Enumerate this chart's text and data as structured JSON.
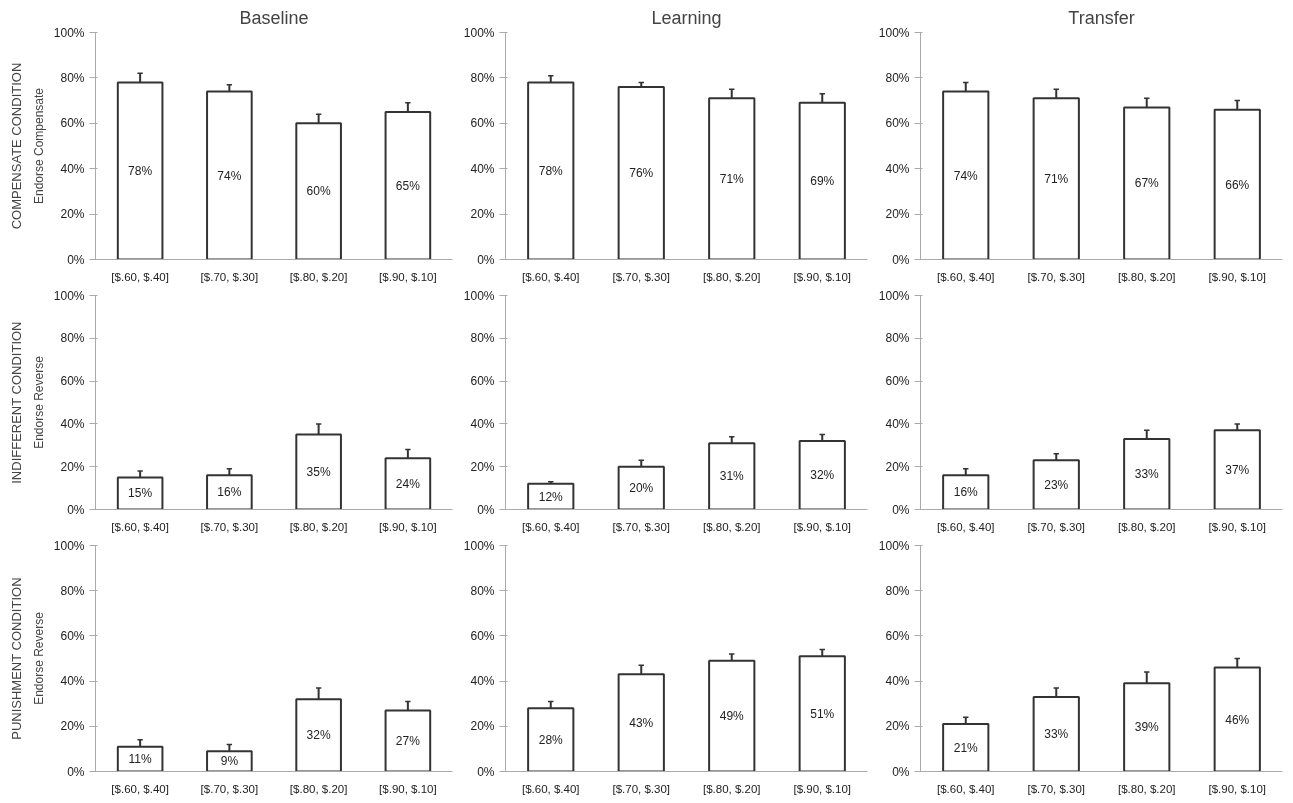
{
  "chart_data": [
    {
      "type": "bar",
      "title": "Baseline",
      "ylabel": "Endorse Compensate",
      "annotations": [
        "COMPENSATE CONDITION"
      ],
      "categories": [
        "[$.60, $.40]",
        "[$.70, $.30]",
        "[$.80, $.20]",
        "[$.90, $.10]"
      ],
      "values": [
        78,
        74,
        60,
        65
      ],
      "errors": [
        [
          78,
          82
        ],
        [
          74,
          77
        ],
        [
          60,
          64
        ],
        [
          65,
          69
        ]
      ],
      "value_labels": [
        "78%",
        "74%",
        "60%",
        "65%"
      ],
      "color": "#ffffff",
      "ylim": [
        0,
        100
      ],
      "yticks": [
        {
          "value": 0,
          "label": "0%"
        },
        {
          "value": 20,
          "label": "20%"
        },
        {
          "value": 40,
          "label": "40%"
        },
        {
          "value": 60,
          "label": "60%"
        },
        {
          "value": 80,
          "label": "80%"
        },
        {
          "value": 100,
          "label": "100%"
        }
      ],
      "grid": false
    },
    {
      "type": "bar",
      "title": "Learning",
      "categories": [
        "[$.60, $.40]",
        "[$.70, $.30]",
        "[$.80, $.20]",
        "[$.90, $.10]"
      ],
      "values": [
        78,
        76,
        71,
        69
      ],
      "errors": [
        [
          78,
          81
        ],
        [
          76,
          78
        ],
        [
          71,
          75
        ],
        [
          69,
          73
        ]
      ],
      "value_labels": [
        "78%",
        "76%",
        "71%",
        "69%"
      ],
      "color": "#ffffff",
      "ylim": [
        0,
        100
      ],
      "yticks": [
        {
          "value": 0,
          "label": "0%"
        },
        {
          "value": 20,
          "label": "20%"
        },
        {
          "value": 40,
          "label": "40%"
        },
        {
          "value": 60,
          "label": "60%"
        },
        {
          "value": 80,
          "label": "80%"
        },
        {
          "value": 100,
          "label": "100%"
        }
      ],
      "grid": false
    },
    {
      "type": "bar",
      "title": "Transfer",
      "categories": [
        "[$.60, $.40]",
        "[$.70, $.30]",
        "[$.80, $.20]",
        "[$.90, $.10]"
      ],
      "values": [
        74,
        71,
        67,
        66
      ],
      "errors": [
        [
          74,
          78
        ],
        [
          71,
          75
        ],
        [
          67,
          71
        ],
        [
          66,
          70
        ]
      ],
      "value_labels": [
        "74%",
        "71%",
        "67%",
        "66%"
      ],
      "color": "#ffffff",
      "ylim": [
        0,
        100
      ],
      "yticks": [
        {
          "value": 0,
          "label": "0%"
        },
        {
          "value": 20,
          "label": "20%"
        },
        {
          "value": 40,
          "label": "40%"
        },
        {
          "value": 60,
          "label": "60%"
        },
        {
          "value": 80,
          "label": "80%"
        },
        {
          "value": 100,
          "label": "100%"
        }
      ],
      "grid": false
    },
    {
      "type": "bar",
      "ylabel": "Endorse Reverse",
      "annotations": [
        "INDIFFERENT CONDITION"
      ],
      "categories": [
        "[$.60, $.40]",
        "[$.70, $.30]",
        "[$.80, $.20]",
        "[$.90, $.10]"
      ],
      "values": [
        15,
        16,
        35,
        24
      ],
      "errors": [
        [
          15,
          18
        ],
        [
          16,
          19
        ],
        [
          35,
          40
        ],
        [
          24,
          28
        ]
      ],
      "value_labels": [
        "15%",
        "16%",
        "35%",
        "24%"
      ],
      "color": "#ffffff",
      "ylim": [
        0,
        100
      ],
      "yticks": [
        {
          "value": 0,
          "label": "0%"
        },
        {
          "value": 20,
          "label": "20%"
        },
        {
          "value": 40,
          "label": "40%"
        },
        {
          "value": 60,
          "label": "60%"
        },
        {
          "value": 80,
          "label": "80%"
        },
        {
          "value": 100,
          "label": "100%"
        }
      ],
      "grid": false
    },
    {
      "type": "bar",
      "categories": [
        "[$.60, $.40]",
        "[$.70, $.30]",
        "[$.80, $.20]",
        "[$.90, $.10]"
      ],
      "values": [
        12,
        20,
        31,
        32
      ],
      "errors": [
        [
          12,
          13
        ],
        [
          20,
          23
        ],
        [
          31,
          34
        ],
        [
          32,
          35
        ]
      ],
      "value_labels": [
        "12%",
        "20%",
        "31%",
        "32%"
      ],
      "color": "#ffffff",
      "ylim": [
        0,
        100
      ],
      "yticks": [
        {
          "value": 0,
          "label": "0%"
        },
        {
          "value": 20,
          "label": "20%"
        },
        {
          "value": 40,
          "label": "40%"
        },
        {
          "value": 60,
          "label": "60%"
        },
        {
          "value": 80,
          "label": "80%"
        },
        {
          "value": 100,
          "label": "100%"
        }
      ],
      "grid": false
    },
    {
      "type": "bar",
      "categories": [
        "[$.60, $.40]",
        "[$.70, $.30]",
        "[$.80, $.20]",
        "[$.90, $.10]"
      ],
      "values": [
        16,
        23,
        33,
        37
      ],
      "errors": [
        [
          16,
          19
        ],
        [
          23,
          26
        ],
        [
          33,
          37
        ],
        [
          37,
          40
        ]
      ],
      "value_labels": [
        "16%",
        "23%",
        "33%",
        "37%"
      ],
      "color": "#ffffff",
      "ylim": [
        0,
        100
      ],
      "yticks": [
        {
          "value": 0,
          "label": "0%"
        },
        {
          "value": 20,
          "label": "20%"
        },
        {
          "value": 40,
          "label": "40%"
        },
        {
          "value": 60,
          "label": "60%"
        },
        {
          "value": 80,
          "label": "80%"
        },
        {
          "value": 100,
          "label": "100%"
        }
      ],
      "grid": false
    },
    {
      "type": "bar",
      "ylabel": "Endorse Reverse",
      "annotations": [
        "PUNISHMENT CONDITION"
      ],
      "categories": [
        "[$.60, $.40]",
        "[$.70, $.30]",
        "[$.80, $.20]",
        "[$.90, $.10]"
      ],
      "values": [
        11,
        9,
        32,
        27
      ],
      "errors": [
        [
          11,
          14
        ],
        [
          9,
          12
        ],
        [
          32,
          37
        ],
        [
          27,
          31
        ]
      ],
      "value_labels": [
        "11%",
        "9%",
        "32%",
        "27%"
      ],
      "color": "#ffffff",
      "ylim": [
        0,
        100
      ],
      "yticks": [
        {
          "value": 0,
          "label": "0%"
        },
        {
          "value": 20,
          "label": "20%"
        },
        {
          "value": 40,
          "label": "40%"
        },
        {
          "value": 60,
          "label": "60%"
        },
        {
          "value": 80,
          "label": "80%"
        },
        {
          "value": 100,
          "label": "100%"
        }
      ],
      "grid": false
    },
    {
      "type": "bar",
      "categories": [
        "[$.60, $.40]",
        "[$.70, $.30]",
        "[$.80, $.20]",
        "[$.90, $.10]"
      ],
      "values": [
        28,
        43,
        49,
        51
      ],
      "errors": [
        [
          28,
          31
        ],
        [
          43,
          47
        ],
        [
          49,
          52
        ],
        [
          51,
          54
        ]
      ],
      "value_labels": [
        "28%",
        "43%",
        "49%",
        "51%"
      ],
      "color": "#ffffff",
      "ylim": [
        0,
        100
      ],
      "yticks": [
        {
          "value": 0,
          "label": "0%"
        },
        {
          "value": 20,
          "label": "20%"
        },
        {
          "value": 40,
          "label": "40%"
        },
        {
          "value": 60,
          "label": "60%"
        },
        {
          "value": 80,
          "label": "80%"
        },
        {
          "value": 100,
          "label": "100%"
        }
      ],
      "grid": false
    },
    {
      "type": "bar",
      "categories": [
        "[$.60, $.40]",
        "[$.70, $.30]",
        "[$.80, $.20]",
        "[$.90, $.10]"
      ],
      "values": [
        21,
        33,
        39,
        46
      ],
      "errors": [
        [
          21,
          24
        ],
        [
          33,
          37
        ],
        [
          39,
          44
        ],
        [
          46,
          50
        ]
      ],
      "value_labels": [
        "21%",
        "33%",
        "39%",
        "46%"
      ],
      "color": "#ffffff",
      "ylim": [
        0,
        100
      ],
      "yticks": [
        {
          "value": 0,
          "label": "0%"
        },
        {
          "value": 20,
          "label": "20%"
        },
        {
          "value": 40,
          "label": "40%"
        },
        {
          "value": 60,
          "label": "60%"
        },
        {
          "value": 80,
          "label": "80%"
        },
        {
          "value": 100,
          "label": "100%"
        }
      ],
      "grid": false
    }
  ]
}
